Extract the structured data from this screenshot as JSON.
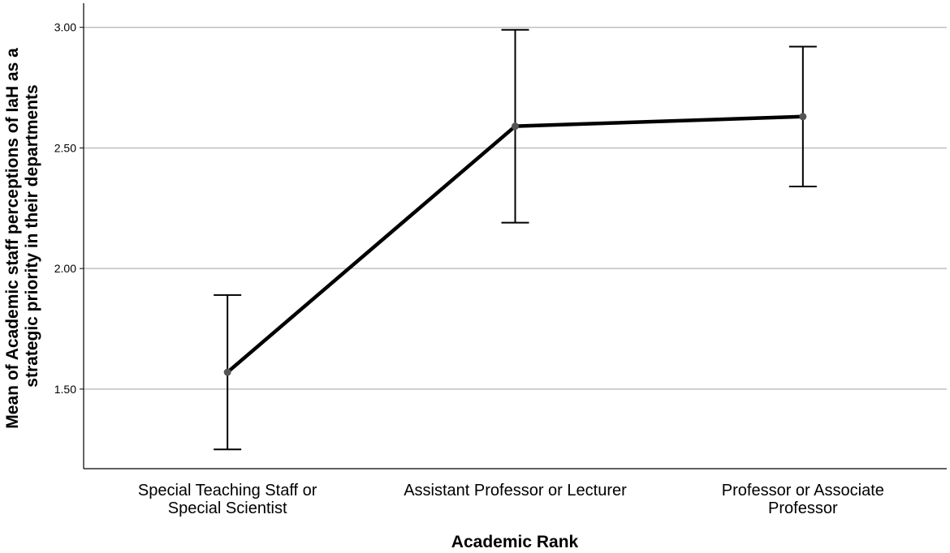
{
  "chart_data": {
    "type": "line",
    "title": "",
    "xlabel": "Academic Rank",
    "ylabel_lines": [
      "Mean of Academic staff perceptions of IaH as a",
      "strategic priority in their departments"
    ],
    "categories": [
      [
        "Special Teaching Staff or",
        "Special Scientist"
      ],
      [
        "Assistant Professor or Lecturer"
      ],
      [
        "Professor or Associate",
        "Professor"
      ]
    ],
    "values": [
      1.57,
      2.59,
      2.63
    ],
    "error_bars": [
      {
        "low": 1.25,
        "high": 1.89
      },
      {
        "low": 2.19,
        "high": 2.99
      },
      {
        "low": 2.34,
        "high": 2.92
      }
    ],
    "ylim": [
      1.17,
      3.1
    ],
    "yticks": [
      1.5,
      2.0,
      2.5,
      3.0
    ],
    "ytick_labels": [
      "1.50",
      "2.00",
      "2.50",
      "3.00"
    ],
    "grid": true,
    "colors": {
      "line": "#000000",
      "marker": "#555555",
      "grid": "#c0c0c0"
    }
  }
}
